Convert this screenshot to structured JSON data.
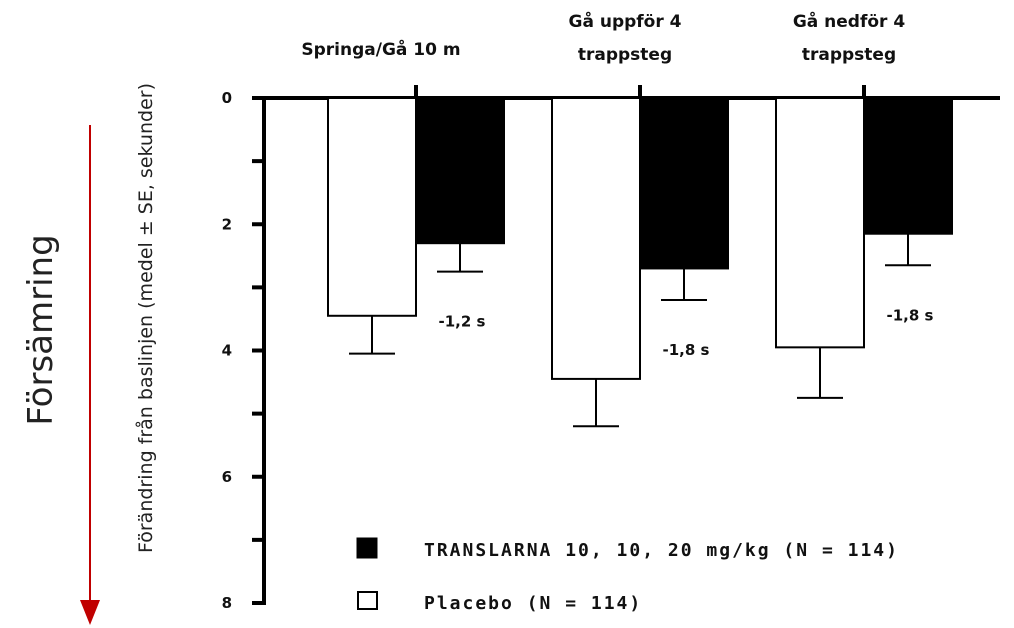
{
  "chart_data": {
    "type": "bar",
    "y_axis_inverted": true,
    "ylim": [
      0,
      8
    ],
    "yticks": [
      "0",
      "2",
      "4",
      "6",
      "8"
    ],
    "ylabel": "Förändring från baslinjen (medel ± SE, sekunder)",
    "side_label": "Försämring",
    "categories": [
      [
        "Springa/Gå 10 m"
      ],
      [
        "Gå uppför 4",
        "trappsteg"
      ],
      [
        "Gå nedför 4",
        "trappsteg"
      ]
    ],
    "series": [
      {
        "name": "Placebo (N = 114)",
        "color": "#ffffff",
        "values": [
          3.45,
          4.45,
          3.95
        ],
        "errors": [
          0.6,
          0.75,
          0.8
        ]
      },
      {
        "name": "TRANSLARNA 10, 10, 20 mg/kg (N = 114)",
        "color": "#000000",
        "values": [
          2.3,
          2.7,
          2.15
        ],
        "errors": [
          0.45,
          0.5,
          0.5
        ]
      }
    ],
    "annotations": [
      "-1,2 s",
      "-1,8 s",
      "-1,8 s"
    ],
    "legend": {
      "placement": "bottom-right",
      "order": [
        "TRANSLARNA 10, 10, 20 mg/kg (N = 114)",
        "Placebo (N = 114)"
      ]
    },
    "arrow_color": "#c00000"
  }
}
